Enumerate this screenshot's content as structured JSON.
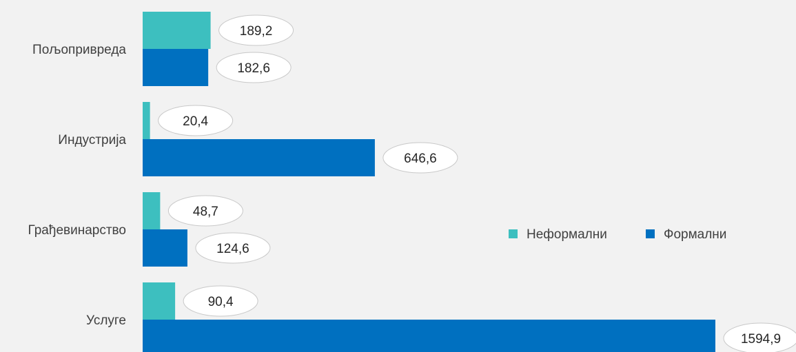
{
  "chart_data": {
    "type": "bar",
    "orientation": "horizontal",
    "categories": [
      "Пољопривреда",
      "Индустрија",
      "Грађевинарство",
      "Услуге"
    ],
    "series": [
      {
        "name": "Неформални",
        "values": [
          189.2,
          20.4,
          48.7,
          90.4
        ],
        "labels": [
          "189,2",
          "20,4",
          "48,7",
          "90,4"
        ],
        "color": "#3dbfbf"
      },
      {
        "name": "Формални",
        "values": [
          182.6,
          646.6,
          124.6,
          1594.9
        ],
        "labels": [
          "182,6",
          "646,6",
          "124,6",
          "1594,9"
        ],
        "color": "#0070c0"
      }
    ],
    "xlim": [
      0,
      1630
    ],
    "grid": false,
    "legend": "right",
    "data_labels": "callout-ellipse"
  }
}
